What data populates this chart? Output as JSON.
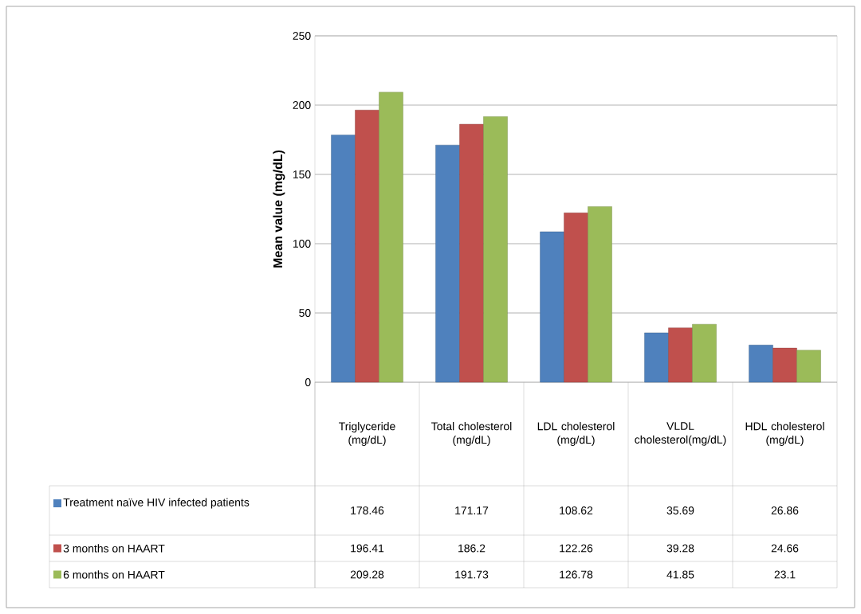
{
  "chart_data": {
    "type": "bar",
    "ylabel": "Mean value (mg/dL)",
    "categories": [
      "Triglyceride (mg/dL)",
      "Total cholesterol (mg/dL)",
      "LDL cholesterol (mg/dL)",
      "VLDL cholesterol(mg/dL)",
      "HDL cholesterol (mg/dL)"
    ],
    "series": [
      {
        "name": "Treatment naïve HIV infected patients",
        "color": "#4f81bd",
        "values": [
          178.46,
          171.17,
          108.62,
          35.69,
          26.86
        ]
      },
      {
        "name": "3 months on HAART",
        "color": "#c0504d",
        "values": [
          196.41,
          186.2,
          122.26,
          39.28,
          24.66
        ]
      },
      {
        "name": "6 months on HAART",
        "color": "#9bbb59",
        "values": [
          209.28,
          191.73,
          126.78,
          41.85,
          23.1
        ]
      }
    ],
    "ylim": [
      0,
      250
    ],
    "yticks": [
      0,
      50,
      100,
      150,
      200,
      250
    ],
    "grid": "y",
    "data_labels": true,
    "legend": "bottom"
  }
}
